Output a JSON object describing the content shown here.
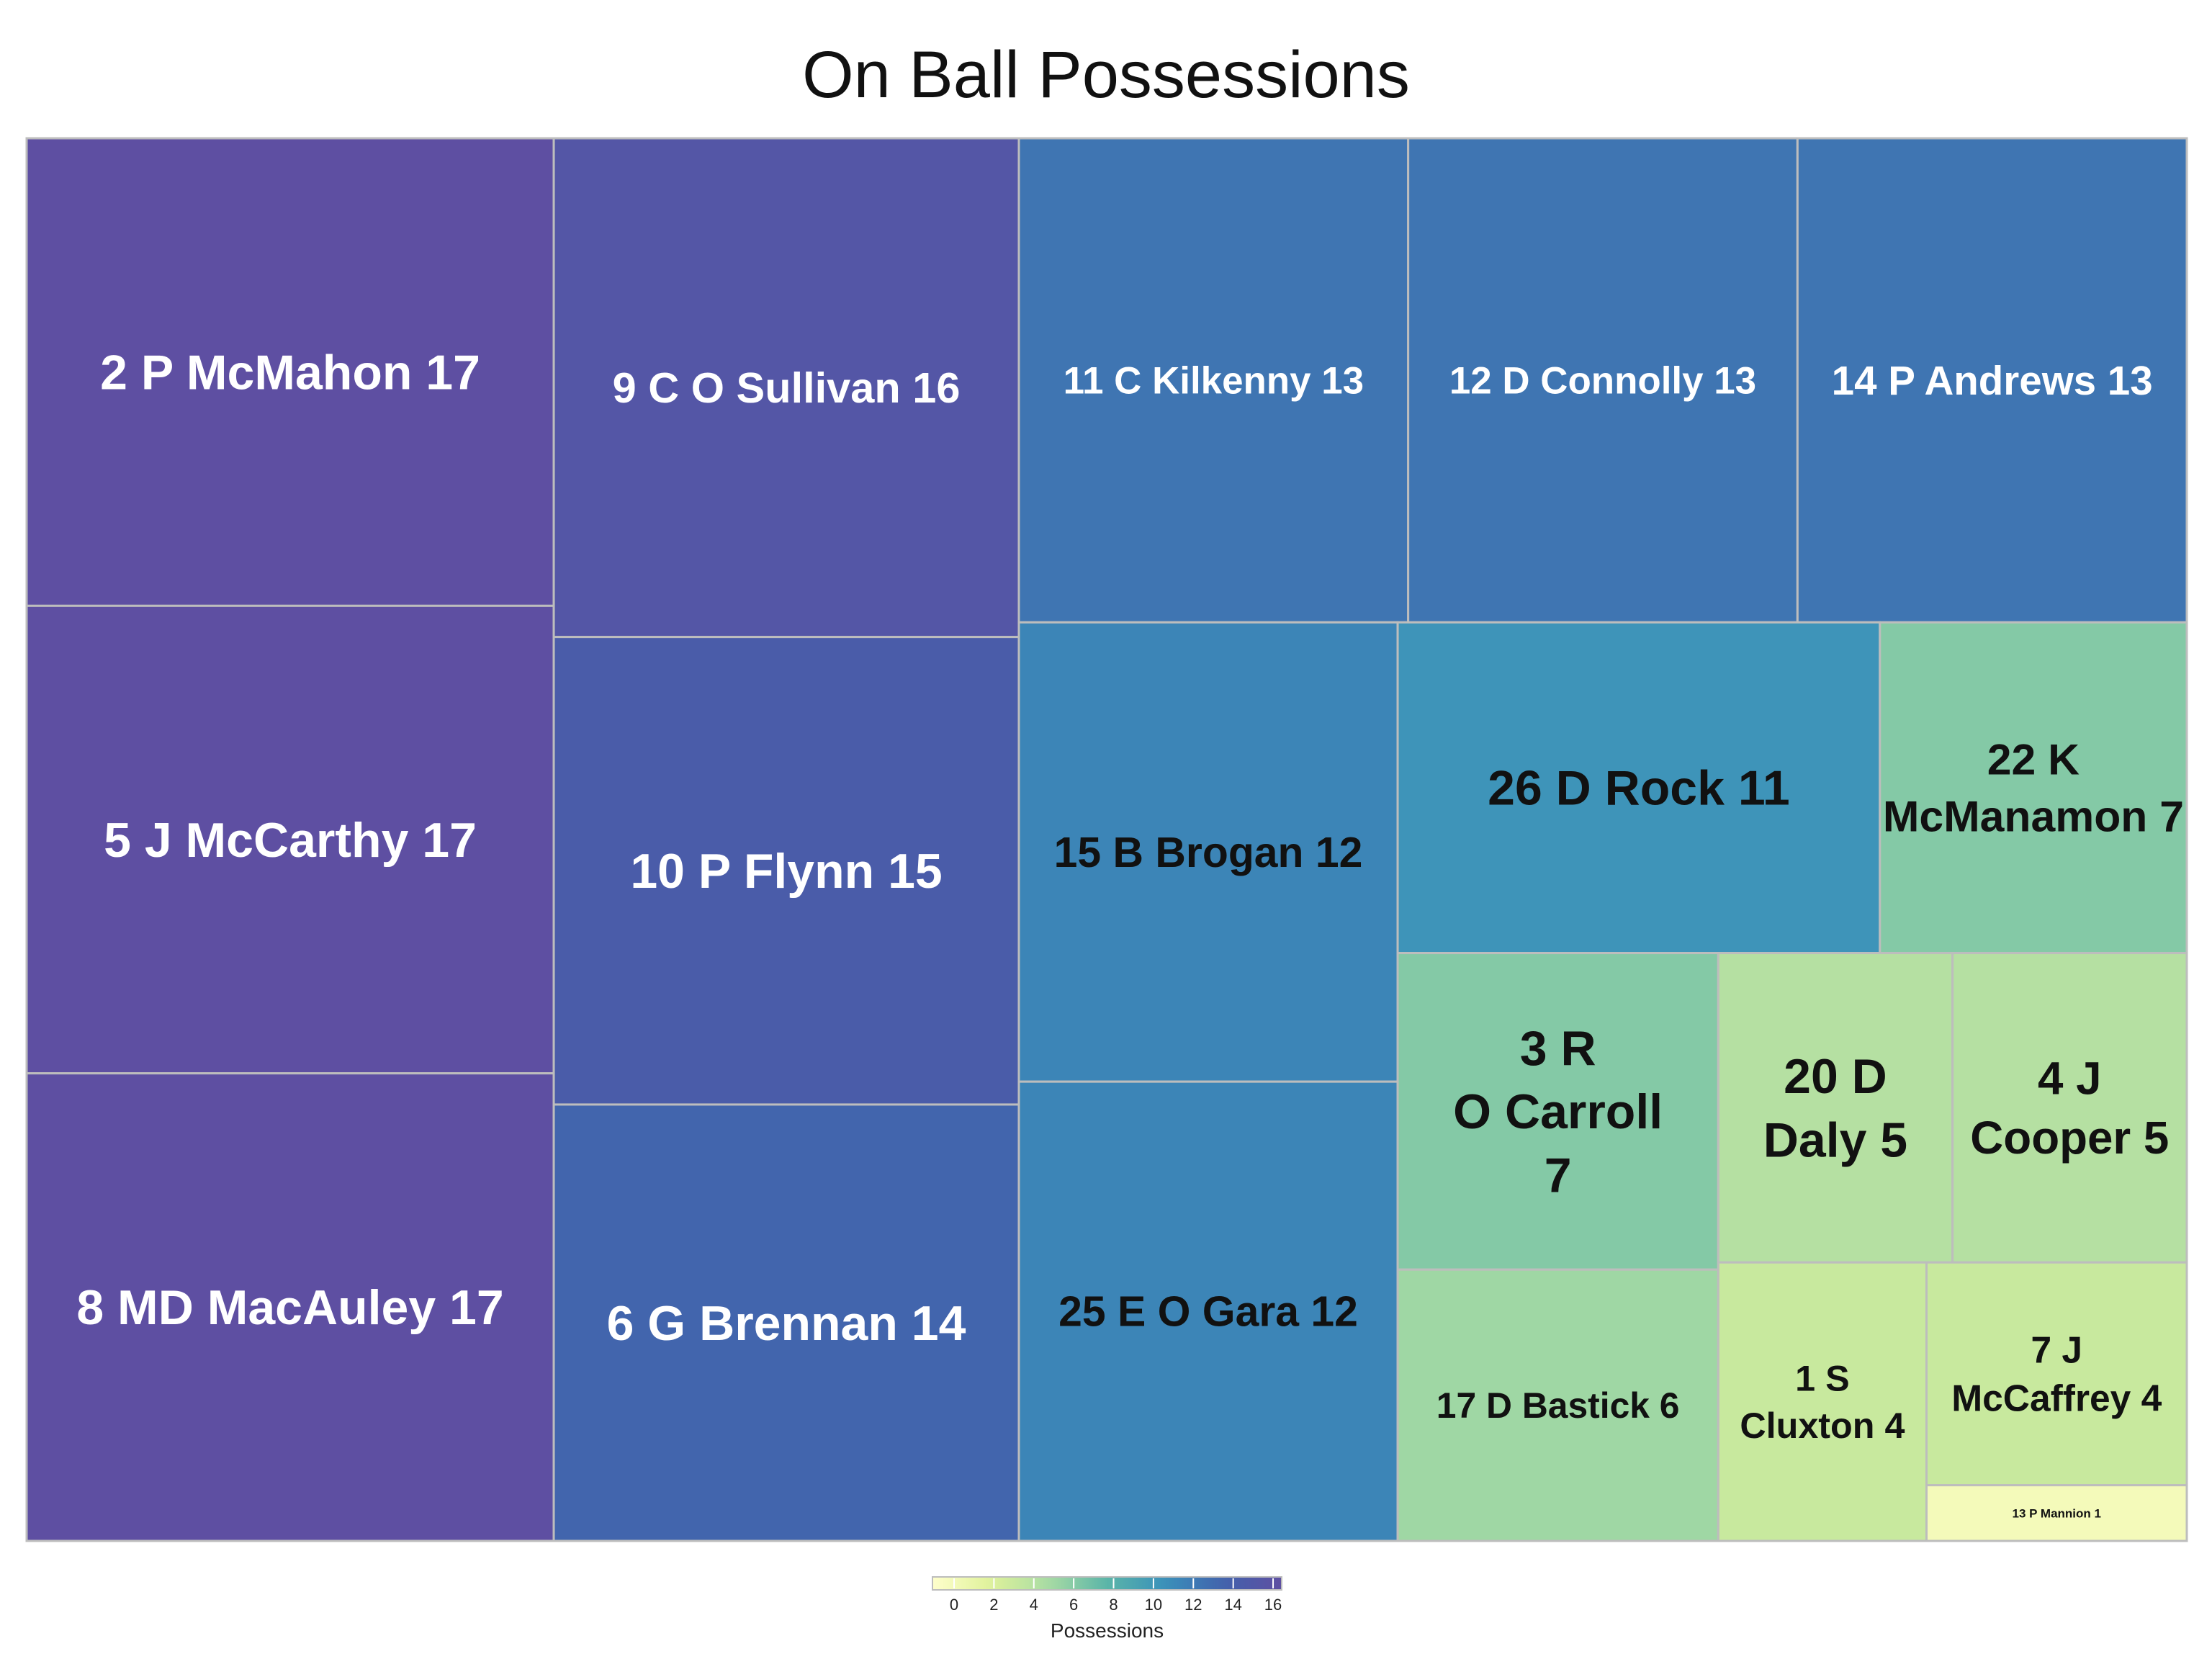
{
  "chart_data": {
    "type": "treemap",
    "title": "On Ball Possessions",
    "value_label": "Possessions",
    "color_scale": {
      "min": 0,
      "max": 17,
      "stops": [
        "#ffffcc",
        "#dff29a",
        "#a8dba4",
        "#5bb5a8",
        "#3a90bb",
        "#4262ac",
        "#5e4fa2"
      ],
      "ticks": [
        0,
        2,
        4,
        6,
        8,
        10,
        12,
        14,
        16
      ]
    },
    "items": [
      {
        "label": "2 P McMahon",
        "value": 17,
        "text": "2 P McMahon 17"
      },
      {
        "label": "5 J McCarthy",
        "value": 17,
        "text": "5 J McCarthy 17"
      },
      {
        "label": "8 MD MacAuley",
        "value": 17,
        "text": "8 MD MacAuley 17"
      },
      {
        "label": "9 C O Sullivan",
        "value": 16,
        "text": "9 C O Sullivan 16"
      },
      {
        "label": "10 P Flynn",
        "value": 15,
        "text": "10 P Flynn 15"
      },
      {
        "label": "6 G Brennan",
        "value": 14,
        "text": "6 G Brennan 14"
      },
      {
        "label": "11 C Kilkenny",
        "value": 13,
        "text": "11 C Kilkenny 13"
      },
      {
        "label": "12 D Connolly",
        "value": 13,
        "text": "12 D Connolly 13"
      },
      {
        "label": "14 P Andrews",
        "value": 13,
        "text": "14 P Andrews 13"
      },
      {
        "label": "15 B Brogan",
        "value": 12,
        "text": "15 B Brogan 12"
      },
      {
        "label": "25 E O Gara",
        "value": 12,
        "text": "25 E O Gara 12"
      },
      {
        "label": "26 D Rock",
        "value": 11,
        "text": "26 D Rock 11"
      },
      {
        "label": "22 K McManamon",
        "value": 7,
        "text": "22 K McManamon 7"
      },
      {
        "label": "3 R O Carroll",
        "value": 7,
        "text": "3 R O Carroll 7"
      },
      {
        "label": "17 D Bastick",
        "value": 6,
        "text": "17 D Bastick 6"
      },
      {
        "label": "20 D Daly",
        "value": 5,
        "text": "20 D Daly 5"
      },
      {
        "label": "4 J Cooper",
        "value": 5,
        "text": "4 J Cooper 5"
      },
      {
        "label": "1 S Cluxton",
        "value": 4,
        "text": "1 S Cluxton 4"
      },
      {
        "label": "7 J McCaffrey",
        "value": 4,
        "text": "7 J McCaffrey 4"
      },
      {
        "label": "13 P Mannion",
        "value": 1,
        "text": "13 P Mannion 1"
      }
    ]
  }
}
